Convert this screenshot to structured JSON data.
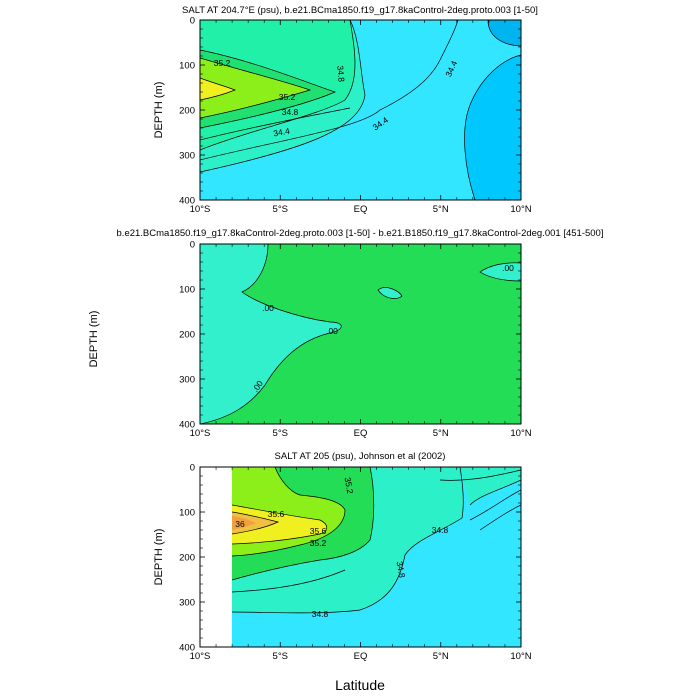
{
  "chart_data": [
    {
      "type": "contour",
      "title": "SALT AT 204.7°E (psu), b.e21.BCma1850.f19_g17.8kaControl-2deg.proto.003 [1-50]",
      "ylabel": "DEPTH (m)",
      "xlabel": "",
      "x_ticks": [
        "10°S",
        "5°S",
        "EQ",
        "5°N",
        "10°N"
      ],
      "x_range": [
        -10,
        10
      ],
      "y_ticks": [
        "0",
        "100",
        "200",
        "300",
        "400"
      ],
      "y_range": [
        0,
        400
      ],
      "contour_labels": [
        "35.2",
        "35.2",
        "34.8",
        "34.8",
        "34.4",
        "34.4",
        "34.4"
      ],
      "colors": {
        "fresh_deep": "#00c8ff",
        "fresh": "#33e6ff",
        "mid": "#2cf0c8",
        "aqua": "#20f0a8",
        "green": "#1fe070",
        "lime": "#8cef1a",
        "yellow": "#f0f020"
      }
    },
    {
      "type": "contour",
      "title": "b.e21.BCma1850.f19_g17.8kaControl-2deg.proto.003 [1-50] - b.e21.B1850.f19_g17.8kaControl-2deg.001 [451-500]",
      "ylabel": "DEPTH (m)",
      "xlabel": "",
      "x_ticks": [
        "10°S",
        "5°S",
        "EQ",
        "5°N",
        "10°N"
      ],
      "x_range": [
        -10,
        10
      ],
      "y_ticks": [
        "0",
        "100",
        "200",
        "300",
        "400"
      ],
      "y_range": [
        0,
        400
      ],
      "contour_labels": [
        ".00",
        ".00",
        ".00",
        ".00"
      ],
      "colors": {
        "negative": "#33f0cc",
        "positive": "#22dd55"
      }
    },
    {
      "type": "contour",
      "title": "SALT AT 205 (psu), Johnson et al (2002)",
      "ylabel": "DEPTH (m)",
      "xlabel": "Latitude",
      "x_ticks": [
        "10°S",
        "5°S",
        "EQ",
        "5°N",
        "10°N"
      ],
      "x_range": [
        -10,
        10
      ],
      "y_ticks": [
        "0",
        "100",
        "200",
        "300",
        "400"
      ],
      "y_range": [
        0,
        400
      ],
      "data_x_range": [
        -8,
        10
      ],
      "contour_labels": [
        "36",
        "35.6",
        "35.6",
        "35.2",
        "35.2",
        "34.8",
        "34.8",
        "34.8"
      ],
      "colors": {
        "fresh": "#33e6ff",
        "mid": "#2cf0c8",
        "green": "#22dd55",
        "lime": "#8cef1a",
        "yellow": "#f0f020",
        "orange": "#f0c040",
        "deep_orange": "#f0a040"
      }
    }
  ]
}
